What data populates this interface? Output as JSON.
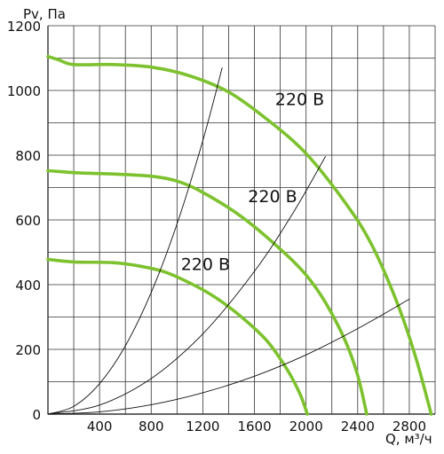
{
  "chart_data": {
    "type": "line",
    "title": "",
    "xlabel": "Q, м³/ч",
    "ylabel": "Pv, Па",
    "xlim": [
      0,
      3000
    ],
    "ylim": [
      0,
      1200
    ],
    "x_ticks": [
      "400",
      "800",
      "1200",
      "1600",
      "2000",
      "2400",
      "2800"
    ],
    "y_ticks": [
      "0",
      "200",
      "400",
      "600",
      "800",
      "1000",
      "1200"
    ],
    "grid": true,
    "colors": {
      "fan_curve": "#7dc22e",
      "system_curve": "#111111",
      "grid": "#333333"
    },
    "series": [
      {
        "name": "220 В",
        "kind": "fan",
        "points": [
          [
            0,
            1105
          ],
          [
            80,
            1095
          ],
          [
            200,
            1080
          ],
          [
            500,
            1080
          ],
          [
            800,
            1072
          ],
          [
            1100,
            1045
          ],
          [
            1400,
            995
          ],
          [
            1700,
            910
          ],
          [
            2000,
            805
          ],
          [
            2300,
            655
          ],
          [
            2500,
            530
          ],
          [
            2700,
            350
          ],
          [
            2850,
            175
          ],
          [
            2970,
            0
          ]
        ]
      },
      {
        "name": "220 В",
        "kind": "fan",
        "points": [
          [
            0,
            752
          ],
          [
            250,
            745
          ],
          [
            500,
            742
          ],
          [
            800,
            735
          ],
          [
            1000,
            720
          ],
          [
            1200,
            685
          ],
          [
            1500,
            610
          ],
          [
            1800,
            510
          ],
          [
            2000,
            430
          ],
          [
            2150,
            345
          ],
          [
            2300,
            230
          ],
          [
            2400,
            120
          ],
          [
            2470,
            0
          ]
        ]
      },
      {
        "name": "220 В",
        "kind": "fan",
        "points": [
          [
            0,
            478
          ],
          [
            200,
            470
          ],
          [
            500,
            468
          ],
          [
            700,
            458
          ],
          [
            900,
            440
          ],
          [
            1100,
            405
          ],
          [
            1300,
            360
          ],
          [
            1500,
            300
          ],
          [
            1700,
            225
          ],
          [
            1850,
            140
          ],
          [
            1950,
            65
          ],
          [
            2010,
            0
          ]
        ]
      },
      {
        "kind": "system",
        "points": [
          [
            0,
            0
          ],
          [
            200,
            24
          ],
          [
            400,
            94
          ],
          [
            600,
            211
          ],
          [
            800,
            376
          ],
          [
            1000,
            587
          ],
          [
            1200,
            845
          ],
          [
            1350,
            1070
          ]
        ]
      },
      {
        "kind": "system",
        "points": [
          [
            0,
            0
          ],
          [
            400,
            28
          ],
          [
            800,
            110
          ],
          [
            1200,
            248
          ],
          [
            1600,
            441
          ],
          [
            1900,
            622
          ],
          [
            2150,
            796
          ]
        ]
      },
      {
        "kind": "system",
        "points": [
          [
            0,
            0
          ],
          [
            400,
            7
          ],
          [
            800,
            29
          ],
          [
            1200,
            66
          ],
          [
            1600,
            117
          ],
          [
            2000,
            183
          ],
          [
            2400,
            264
          ],
          [
            2800,
            355
          ]
        ]
      }
    ],
    "annotations": [
      {
        "text": "220 В",
        "x": 1760,
        "y": 955
      },
      {
        "text": "220 В",
        "x": 1550,
        "y": 655
      },
      {
        "text": "220 В",
        "x": 1030,
        "y": 445
      }
    ]
  }
}
